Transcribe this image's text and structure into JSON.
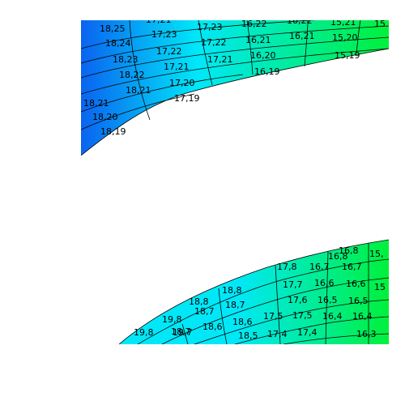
{
  "colors": {
    "band_start": "#0a63f0",
    "band_mid": "#00e8f8",
    "band_end": "#00f03c",
    "grid_line": "#000000",
    "background": "#ffffff"
  },
  "upper_band": {
    "cells": [
      {
        "text": "18,25"
      },
      {
        "text": "17,21"
      },
      {
        "text": "17,23"
      },
      {
        "text": "16,22"
      },
      {
        "text": "16,22"
      },
      {
        "text": "15,21"
      },
      {
        "text": "15"
      },
      {
        "text": "18,24"
      },
      {
        "text": "17,23"
      },
      {
        "text": "17,22"
      },
      {
        "text": "16,21"
      },
      {
        "text": "16,21"
      },
      {
        "text": "15,20"
      },
      {
        "text": "18,23"
      },
      {
        "text": "17,22"
      },
      {
        "text": "17,21"
      },
      {
        "text": "16,20"
      },
      {
        "text": "15,19"
      },
      {
        "text": "18,22"
      },
      {
        "text": "17,21"
      },
      {
        "text": "16,19"
      },
      {
        "text": "18,21"
      },
      {
        "text": "17,20"
      },
      {
        "text": "18,21"
      },
      {
        "text": "17,19"
      },
      {
        "text": "18,20"
      },
      {
        "text": "18,19"
      }
    ]
  },
  "lower_band": {
    "cells": [
      {
        "text": "16,8"
      },
      {
        "text": "16,8"
      },
      {
        "text": "15,"
      },
      {
        "text": "17,8"
      },
      {
        "text": "16,7"
      },
      {
        "text": "16,7"
      },
      {
        "text": "17,7"
      },
      {
        "text": "16,6"
      },
      {
        "text": "16,6"
      },
      {
        "text": "15"
      },
      {
        "text": "18,8"
      },
      {
        "text": "17,6"
      },
      {
        "text": "16,5"
      },
      {
        "text": "16,5"
      },
      {
        "text": "18,8"
      },
      {
        "text": "18,7"
      },
      {
        "text": "17,5"
      },
      {
        "text": "17,5"
      },
      {
        "text": "16,4"
      },
      {
        "text": "16,4"
      },
      {
        "text": "18,7"
      },
      {
        "text": "18,7"
      },
      {
        "text": "18,6"
      },
      {
        "text": "18,6"
      },
      {
        "text": "19,8"
      },
      {
        "text": "19,7"
      },
      {
        "text": "18,5"
      },
      {
        "text": "17,4"
      },
      {
        "text": "17,4"
      },
      {
        "text": "16,3"
      },
      {
        "text": "19,8"
      }
    ]
  }
}
